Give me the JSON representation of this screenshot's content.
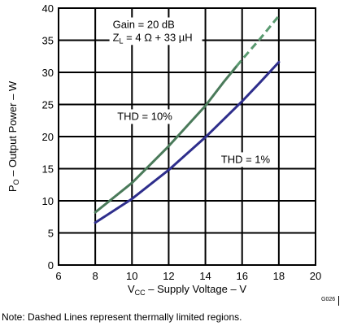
{
  "chart_data": {
    "type": "line",
    "xlabel": {
      "main": "V",
      "sub": "CC",
      "rest": " – Supply Voltage – V"
    },
    "ylabel": {
      "main": "P",
      "sub": "O",
      "rest": " – Output Power – W"
    },
    "xlim": [
      6,
      20
    ],
    "ylim": [
      0,
      40
    ],
    "xticks": [
      6,
      8,
      10,
      12,
      14,
      16,
      18,
      20
    ],
    "yticks": [
      0,
      5,
      10,
      15,
      20,
      25,
      30,
      35,
      40
    ],
    "grid": true,
    "annotations": {
      "gain": "Gain = 20 dB",
      "load": {
        "main": "Z",
        "sub": "L",
        "rest": " = 4 Ω + 33 µH"
      },
      "thd10": "THD = 10%",
      "thd1": "THD = 1%"
    },
    "series": [
      {
        "label": "THD = 10%",
        "color": "#4a7a5a",
        "points": [
          [
            8,
            8.2
          ],
          [
            10,
            12.8
          ],
          [
            12,
            18.5
          ],
          [
            14,
            24.8
          ],
          [
            15,
            28.5
          ],
          [
            16,
            32.0
          ],
          [
            17,
            35.3
          ],
          [
            18,
            38.8
          ]
        ],
        "dashed_from_x": 15.7
      },
      {
        "label": "THD = 1%",
        "color": "#2e2e8c",
        "points": [
          [
            8,
            6.6
          ],
          [
            10,
            10.3
          ],
          [
            12,
            14.8
          ],
          [
            14,
            19.9
          ],
          [
            16,
            25.5
          ],
          [
            17,
            28.5
          ],
          [
            18,
            31.6
          ]
        ],
        "dashed_from_x": null
      }
    ]
  },
  "figure_id": "G026",
  "note": "Note: Dashed Lines represent thermally limited regions."
}
